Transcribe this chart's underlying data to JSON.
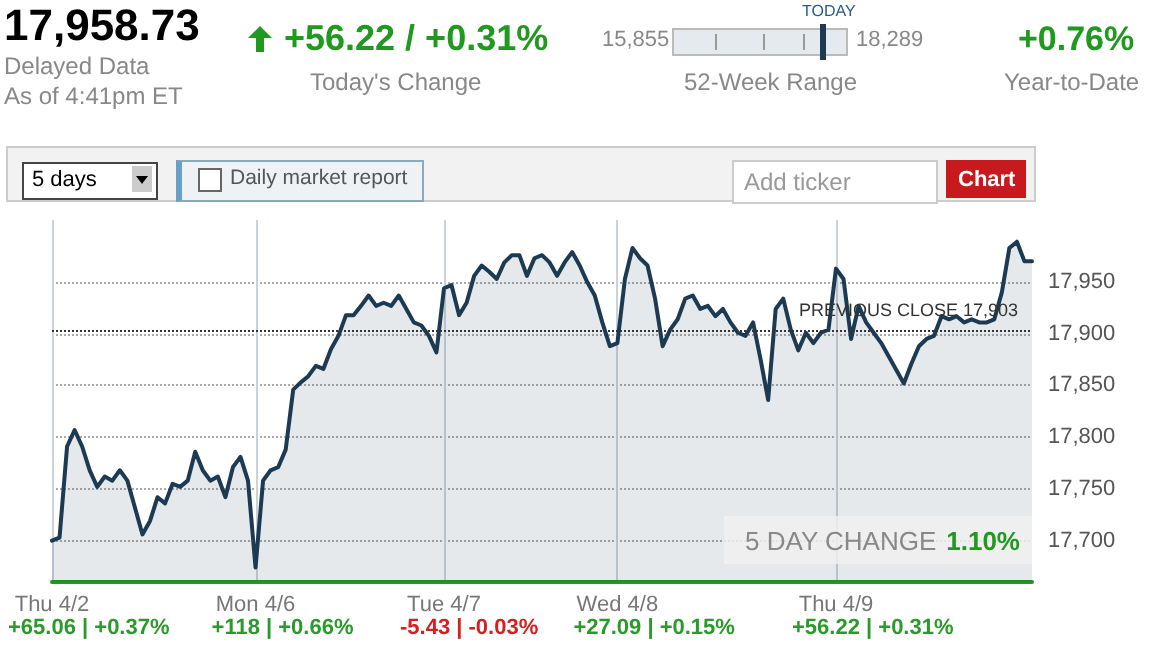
{
  "chart_data": {
    "type": "area",
    "title": "17,958.73",
    "annotations": [
      "Delayed Data",
      "As of 4:41pm ET",
      "+56.22 / +0.31%",
      "Today's Change",
      "15,855",
      "18,289",
      "TODAY",
      "52-Week Range",
      "+0.76%",
      "Year-to-Date",
      "5 days",
      "Daily market report",
      "Add ticker",
      "Chart",
      "5 DAY CHANGE",
      "1.10%",
      "+65.06 | +0.37%",
      "+118 | +0.66%",
      "-5.43 | -0.03%",
      "+27.09 | +0.15%",
      "+56.22 | +0.31%"
    ],
    "categories": [
      "Thu 4/2",
      null,
      null,
      null,
      null,
      null,
      null,
      null,
      null,
      null,
      null,
      null,
      null,
      null,
      null,
      null,
      null,
      null,
      null,
      null,
      null,
      null,
      null,
      null,
      null,
      null,
      null,
      "Mon 4/6",
      null,
      null,
      null,
      null,
      null,
      null,
      null,
      null,
      null,
      null,
      null,
      null,
      null,
      null,
      null,
      null,
      null,
      null,
      null,
      null,
      null,
      null,
      null,
      null,
      "Tue 4/7",
      null,
      null,
      null,
      null,
      null,
      null,
      null,
      null,
      null,
      null,
      null,
      null,
      null,
      null,
      null,
      null,
      null,
      null,
      null,
      null,
      null,
      null,
      "Wed 4/8",
      null,
      null,
      null,
      null,
      null,
      null,
      null,
      null,
      null,
      null,
      null,
      null,
      null,
      null,
      null,
      null,
      null,
      null,
      null,
      null,
      null,
      null,
      null,
      null,
      null,
      null,
      null,
      null,
      "Thu 4/9",
      null,
      null,
      null,
      null,
      null,
      null,
      null,
      null,
      null,
      null,
      null,
      null,
      null,
      null,
      null,
      null,
      null,
      null,
      null,
      null,
      null,
      null,
      null,
      null,
      null,
      null
    ],
    "series": [
      {
        "color": "#1c3a52",
        "values": [
          17700,
          17703,
          17791,
          17807,
          17791,
          17768,
          17752,
          17762,
          17758,
          17768,
          17758,
          17732,
          17706,
          17719,
          17742,
          17736,
          17755,
          17752,
          17758,
          17786,
          17768,
          17758,
          17762,
          17742,
          17771,
          17781,
          17758,
          17674,
          17758,
          17768,
          17771,
          17788,
          17846,
          17853,
          17859,
          17869,
          17866,
          17885,
          17898,
          17918,
          17918,
          17927,
          17937,
          17927,
          17930,
          17927,
          17937,
          17924,
          17911,
          17908,
          17898,
          17882,
          17944,
          17947,
          17918,
          17930,
          17956,
          17966,
          17960,
          17953,
          17969,
          17976,
          17976,
          17956,
          17973,
          17976,
          17969,
          17956,
          17969,
          17979,
          17966,
          17950,
          17937,
          17911,
          17888,
          17891,
          17953,
          17983,
          17973,
          17966,
          17934,
          17888,
          17904,
          17914,
          17934,
          17937,
          17924,
          17927,
          17917,
          17924,
          17911,
          17901,
          17898,
          17911,
          17875,
          17836,
          17924,
          17934,
          17904,
          17884,
          17901,
          17891,
          17901,
          17904,
          17963,
          17953,
          17895,
          17927,
          17911,
          17901,
          17891,
          17878,
          17865,
          17852,
          17871,
          17888,
          17895,
          17898,
          17917,
          17914,
          17917,
          17911,
          17914,
          17911,
          17911,
          17914,
          17940,
          17983,
          17989,
          17970,
          17970
        ]
      }
    ],
    "ylim": [
      17660,
      18010
    ],
    "yticks": [
      {
        "value": 17700,
        "label": "17,700"
      },
      {
        "value": 17750,
        "label": "17,750"
      },
      {
        "value": 17800,
        "label": "17,800"
      },
      {
        "value": 17850,
        "label": "17,850"
      },
      {
        "value": 17900,
        "label": "17,900"
      },
      {
        "value": 17950,
        "label": "17,950"
      }
    ],
    "ref_lines": [
      {
        "axis": "y",
        "value": 17903,
        "label": "PREVIOUS CLOSE 17,903",
        "color": "#333333",
        "line_style": "dotted"
      }
    ],
    "grid": true,
    "marker": "none",
    "line_style": "solid"
  }
}
